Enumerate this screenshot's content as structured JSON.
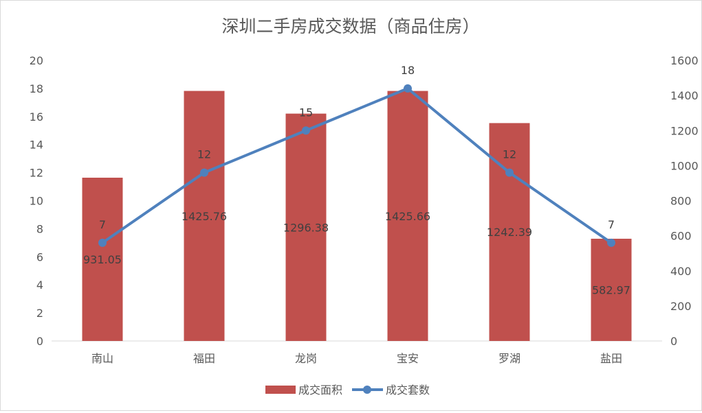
{
  "chart_data": {
    "type": "bar",
    "title": "深圳二手房成交数据（商品住房）",
    "categories": [
      "南山",
      "福田",
      "龙岗",
      "宝安",
      "罗湖",
      "盐田"
    ],
    "series": [
      {
        "name": "成交面积",
        "type": "bar",
        "axis": "right",
        "values": [
          931.05,
          1425.76,
          1296.38,
          1425.66,
          1242.39,
          582.97
        ],
        "labels": [
          "931.05",
          "1425.76",
          "1296.38",
          "1425.66",
          "1242.39",
          "582.97"
        ],
        "color": "#c0504d"
      },
      {
        "name": "成交套数",
        "type": "line",
        "axis": "left",
        "values": [
          7,
          12,
          15,
          18,
          12,
          7
        ],
        "labels": [
          "7",
          "12",
          "15",
          "18",
          "12",
          "7"
        ],
        "color": "#4f81bd"
      }
    ],
    "y_left": {
      "min": 0,
      "max": 20,
      "step": 2,
      "ticks": [
        "0",
        "2",
        "4",
        "6",
        "8",
        "10",
        "12",
        "14",
        "16",
        "18",
        "20"
      ]
    },
    "y_right": {
      "min": 0,
      "max": 1600,
      "step": 200,
      "ticks": [
        "0",
        "200",
        "400",
        "600",
        "800",
        "1000",
        "1200",
        "1400",
        "1600"
      ]
    },
    "grid": false,
    "legend_position": "bottom",
    "axis_color": "#d9d9d9",
    "text_color": "#595959",
    "label_color": "#404040"
  }
}
